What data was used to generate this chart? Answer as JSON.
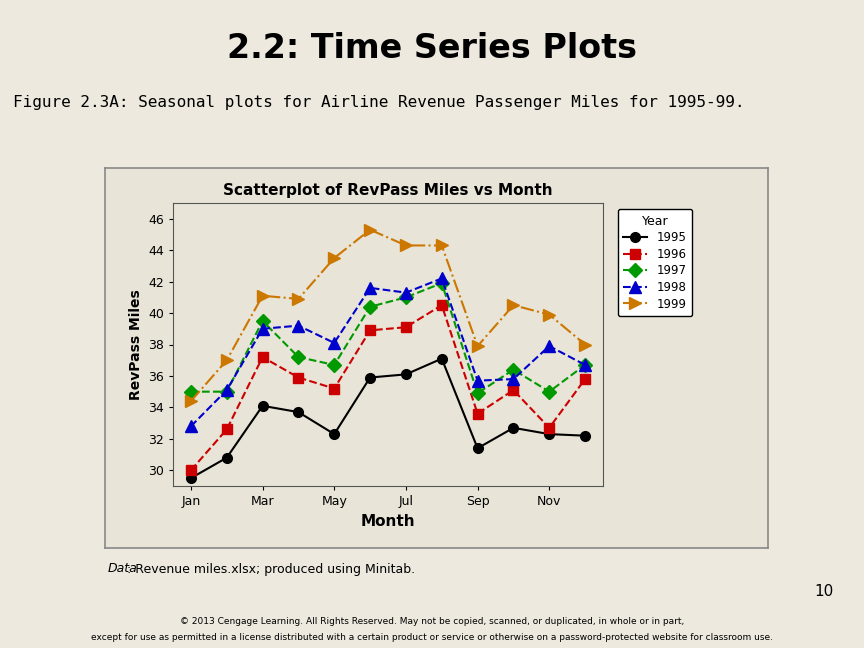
{
  "title": "2.2: Time Series Plots",
  "subtitle": "Figure 2.3A: Seasonal plots for Airline Revenue Passenger Miles for 1995-99.",
  "chart_title": "Scatterplot of RevPass Miles vs Month",
  "xlabel": "Month",
  "ylabel": "RevPass Miles",
  "footnote_italic": "Data",
  "footnote_rest": ": Revenue miles.xlsx; produced using Minitab.",
  "page_number": "10",
  "months": [
    1,
    2,
    3,
    4,
    5,
    6,
    7,
    8,
    9,
    10,
    11,
    12
  ],
  "month_labels": [
    "Jan",
    "Mar",
    "May",
    "Jul",
    "Sep",
    "Nov"
  ],
  "month_ticks": [
    1,
    3,
    5,
    7,
    9,
    11
  ],
  "ylim": [
    29,
    47
  ],
  "yticks": [
    30,
    32,
    34,
    36,
    38,
    40,
    42,
    44,
    46
  ],
  "series": {
    "1995": {
      "values": [
        29.5,
        30.8,
        34.1,
        33.7,
        32.3,
        35.9,
        36.1,
        37.1,
        31.4,
        32.7,
        32.3,
        32.2
      ],
      "color": "#000000",
      "marker": "o",
      "linestyle": "-",
      "linewidth": 1.5
    },
    "1996": {
      "values": [
        30.0,
        32.6,
        37.2,
        35.9,
        35.2,
        38.9,
        39.1,
        40.5,
        33.6,
        35.1,
        32.7,
        35.8
      ],
      "color": "#cc0000",
      "marker": "s",
      "linestyle": "--",
      "linewidth": 1.5
    },
    "1997": {
      "values": [
        35.0,
        35.0,
        39.5,
        37.2,
        36.7,
        40.4,
        41.0,
        41.9,
        34.9,
        36.4,
        35.0,
        36.7
      ],
      "color": "#009900",
      "marker": "D",
      "linestyle": "--",
      "linewidth": 1.5
    },
    "1998": {
      "values": [
        32.8,
        35.1,
        39.0,
        39.2,
        38.1,
        41.6,
        41.3,
        42.2,
        35.7,
        35.8,
        37.9,
        36.7
      ],
      "color": "#0000cc",
      "marker": "^",
      "linestyle": "--",
      "linewidth": 1.5
    },
    "1999": {
      "values": [
        34.4,
        37.0,
        41.1,
        40.9,
        43.5,
        45.3,
        44.3,
        44.3,
        37.9,
        40.5,
        39.9,
        38.0
      ],
      "color": "#cc7700",
      "marker": ">",
      "linestyle": "-.",
      "linewidth": 1.5
    }
  },
  "header_bg": "#6b9ea8",
  "header_stripe": "#d4d896",
  "chart_bg": "#e8e4d8",
  "outer_bg": "#ede9df",
  "footer_bg": "#c8c4b8"
}
